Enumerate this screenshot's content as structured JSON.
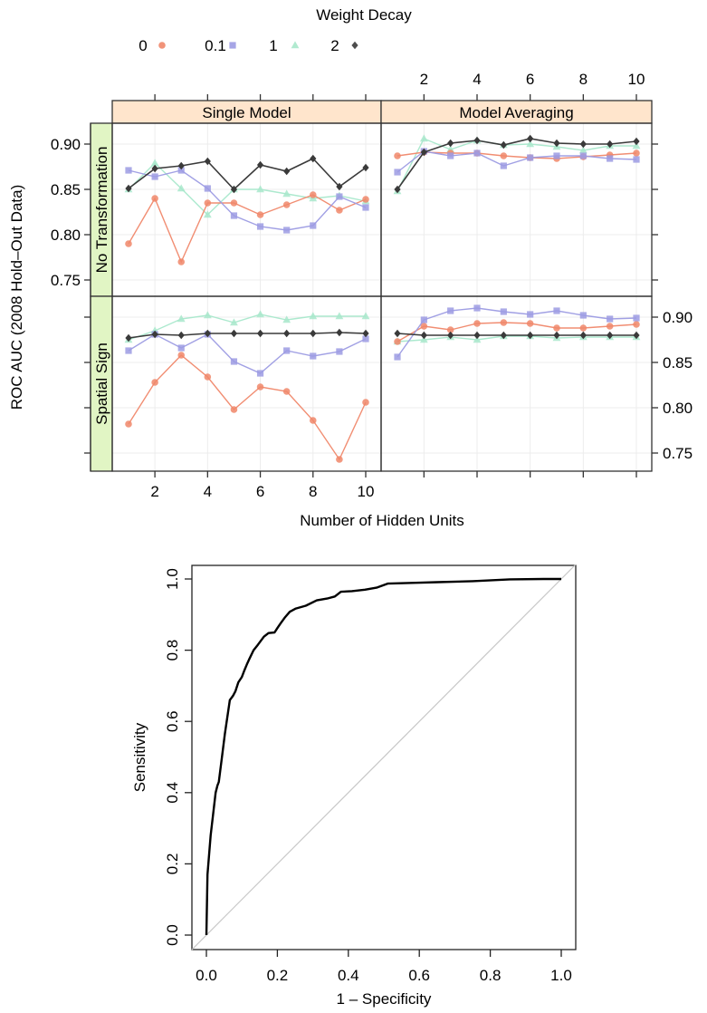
{
  "chart_data": [
    {
      "type": "line",
      "title": "",
      "legend": {
        "title": "Weight Decay",
        "placement": "top",
        "entries": [
          {
            "label": "0",
            "color": "#F0876A",
            "marker": "circle"
          },
          {
            "label": "0.1",
            "color": "#9C9BE3",
            "marker": "square"
          },
          {
            "label": "1",
            "color": "#A8E8CB",
            "marker": "triangle"
          },
          {
            "label": "2",
            "color": "#3A3A3A",
            "marker": "diamond"
          }
        ]
      },
      "xlabel": "Number of Hidden Units",
      "ylabel": "ROC AUC (2008 Hold–Out Data)",
      "x": [
        1,
        2,
        3,
        4,
        5,
        6,
        7,
        8,
        9,
        10
      ],
      "xticks": [
        "2",
        "4",
        "6",
        "8",
        "10"
      ],
      "xtick_values": [
        2,
        4,
        6,
        8,
        10
      ],
      "ylim": [
        0.73,
        0.92
      ],
      "yticks": [
        "0.75",
        "0.80",
        "0.85",
        "0.90"
      ],
      "ytick_values": [
        0.75,
        0.8,
        0.85,
        0.9
      ],
      "grid": true,
      "column_strips": [
        "Single Model",
        "Model Averaging"
      ],
      "row_strips": [
        "No Transformation",
        "Spatial Sign"
      ],
      "panels": [
        {
          "row": "No Transformation",
          "column": "Single Model",
          "series": [
            {
              "name": "0",
              "values": [
                0.79,
                0.84,
                0.77,
                0.835,
                0.835,
                0.822,
                0.833,
                0.844,
                0.827,
                0.839
              ]
            },
            {
              "name": "0.1",
              "values": [
                0.871,
                0.864,
                0.871,
                0.851,
                0.821,
                0.809,
                0.805,
                0.81,
                0.842,
                0.83
              ]
            },
            {
              "name": "1",
              "values": [
                0.85,
                0.879,
                0.851,
                0.822,
                0.85,
                0.85,
                0.845,
                0.84,
                0.843,
                0.837
              ]
            },
            {
              "name": "2",
              "values": [
                0.851,
                0.873,
                0.876,
                0.881,
                0.85,
                0.877,
                0.87,
                0.884,
                0.853,
                0.874
              ]
            }
          ]
        },
        {
          "row": "No Transformation",
          "column": "Model Averaging",
          "series": [
            {
              "name": "0",
              "values": [
                0.887,
                0.891,
                0.89,
                0.89,
                0.887,
                0.885,
                0.884,
                0.886,
                0.888,
                0.89
              ]
            },
            {
              "name": "0.1",
              "values": [
                0.869,
                0.892,
                0.887,
                0.89,
                0.876,
                0.885,
                0.887,
                0.887,
                0.884,
                0.883
              ]
            },
            {
              "name": "1",
              "values": [
                0.848,
                0.906,
                0.894,
                0.904,
                0.899,
                0.9,
                0.897,
                0.893,
                0.898,
                0.898
              ]
            },
            {
              "name": "2",
              "values": [
                0.85,
                0.891,
                0.901,
                0.904,
                0.899,
                0.906,
                0.901,
                0.9,
                0.9,
                0.903
              ]
            }
          ]
        },
        {
          "row": "Spatial Sign",
          "column": "Single Model",
          "series": [
            {
              "name": "0",
              "values": [
                0.782,
                0.828,
                0.858,
                0.834,
                0.798,
                0.823,
                0.818,
                0.786,
                0.743,
                0.806
              ]
            },
            {
              "name": "0.1",
              "values": [
                0.863,
                0.881,
                0.866,
                0.881,
                0.851,
                0.838,
                0.863,
                0.857,
                0.862,
                0.876
              ]
            },
            {
              "name": "1",
              "values": [
                0.875,
                0.885,
                0.898,
                0.902,
                0.894,
                0.903,
                0.897,
                0.901,
                0.901,
                0.901
              ]
            },
            {
              "name": "2",
              "values": [
                0.877,
                0.881,
                0.88,
                0.882,
                0.882,
                0.882,
                0.882,
                0.882,
                0.883,
                0.882
              ]
            }
          ]
        },
        {
          "row": "Spatial Sign",
          "column": "Model Averaging",
          "series": [
            {
              "name": "0",
              "values": [
                0.873,
                0.89,
                0.886,
                0.893,
                0.894,
                0.893,
                0.888,
                0.888,
                0.89,
                0.892
              ]
            },
            {
              "name": "0.1",
              "values": [
                0.856,
                0.897,
                0.907,
                0.91,
                0.906,
                0.903,
                0.907,
                0.902,
                0.898,
                0.899
              ]
            },
            {
              "name": "1",
              "values": [
                0.873,
                0.875,
                0.878,
                0.875,
                0.879,
                0.879,
                0.877,
                0.878,
                0.878,
                0.878
              ]
            },
            {
              "name": "2",
              "values": [
                0.882,
                0.88,
                0.88,
                0.88,
                0.88,
                0.88,
                0.88,
                0.88,
                0.88,
                0.88
              ]
            }
          ]
        }
      ]
    },
    {
      "type": "line",
      "title": "",
      "xlabel": "1 – Specificity",
      "ylabel": "Sensitivity",
      "xlim": [
        0,
        1
      ],
      "ylim": [
        0,
        1
      ],
      "xticks": [
        "0.0",
        "0.2",
        "0.4",
        "0.6",
        "0.8",
        "1.0"
      ],
      "xtick_values": [
        0,
        0.2,
        0.4,
        0.6,
        0.8,
        1.0
      ],
      "yticks": [
        "0.0",
        "0.2",
        "0.4",
        "0.6",
        "0.8",
        "1.0"
      ],
      "ytick_values": [
        0,
        0.2,
        0.4,
        0.6,
        0.8,
        1.0
      ],
      "grid": false,
      "reference_line": {
        "from": [
          0,
          0
        ],
        "to": [
          1,
          1
        ],
        "color": "#C8C8C8"
      },
      "series": [
        {
          "name": "ROC",
          "color": "#000000",
          "x": [
            0.0,
            0.003,
            0.012,
            0.026,
            0.031,
            0.035,
            0.044,
            0.052,
            0.066,
            0.075,
            0.082,
            0.09,
            0.1,
            0.107,
            0.114,
            0.12,
            0.133,
            0.145,
            0.162,
            0.175,
            0.192,
            0.2,
            0.209,
            0.222,
            0.235,
            0.252,
            0.28,
            0.311,
            0.34,
            0.362,
            0.379,
            0.41,
            0.447,
            0.481,
            0.511,
            0.58,
            0.651,
            0.75,
            0.855,
            0.95,
            1.0
          ],
          "y": [
            0.0,
            0.17,
            0.28,
            0.4,
            0.42,
            0.43,
            0.5,
            0.565,
            0.66,
            0.672,
            0.685,
            0.71,
            0.725,
            0.743,
            0.76,
            0.773,
            0.8,
            0.815,
            0.838,
            0.848,
            0.85,
            0.862,
            0.875,
            0.893,
            0.908,
            0.917,
            0.925,
            0.94,
            0.945,
            0.951,
            0.964,
            0.966,
            0.97,
            0.976,
            0.987,
            0.989,
            0.991,
            0.994,
            0.999,
            1.0,
            1.0
          ]
        }
      ]
    }
  ]
}
